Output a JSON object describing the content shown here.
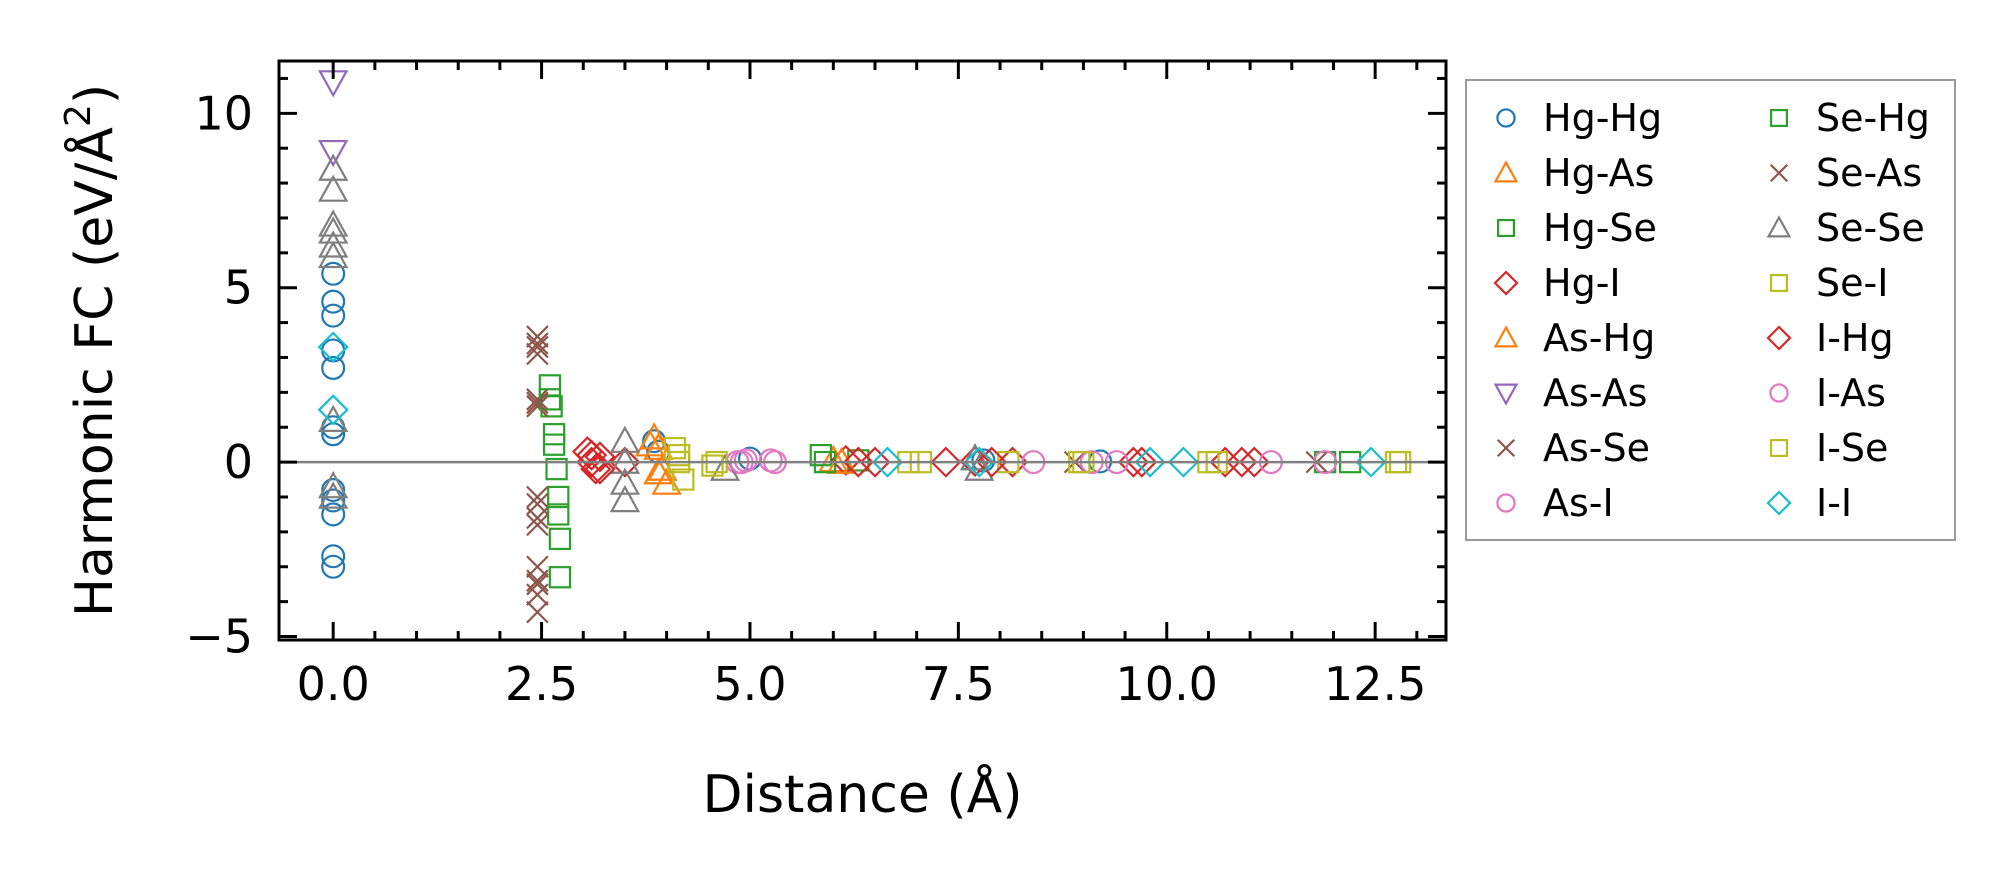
{
  "chart_data": {
    "type": "scatter",
    "xlabel": "Distance (Å)",
    "ylabel": "Harmonic FC (eV/Å²)",
    "ylabel_base": "Harmonic FC (eV/Å",
    "ylabel_sup": "2",
    "ylabel_close": ")",
    "xlim": [
      -0.65,
      13.35
    ],
    "ylim": [
      -5.1,
      11.5
    ],
    "xticks": [
      0.0,
      2.5,
      5.0,
      7.5,
      10.0,
      12.5
    ],
    "xtick_labels": [
      "0.0",
      "2.5",
      "5.0",
      "7.5",
      "10.0",
      "12.5"
    ],
    "yticks": [
      -5,
      0,
      5,
      10
    ],
    "ytick_labels": [
      "−5",
      "0",
      "5",
      "10"
    ],
    "zero_line": true,
    "legend_position": "outside-right",
    "series": [
      {
        "name": "Hg-Hg",
        "marker": "circle",
        "color": "#1f77b4",
        "x": [
          0,
          0,
          0,
          0,
          0,
          0,
          0,
          0,
          0,
          0,
          0,
          0,
          3.85,
          3.9,
          5.0,
          7.8,
          9.2
        ],
        "y": [
          5.4,
          4.6,
          4.2,
          3.2,
          2.7,
          1.0,
          0.8,
          -0.8,
          -1.1,
          -1.5,
          -2.7,
          -3.0,
          0.6,
          0.3,
          0.1,
          0.05,
          0.02
        ]
      },
      {
        "name": "Hg-As",
        "marker": "triangle-up",
        "color": "#ff7f0e",
        "x": [
          3.85,
          3.9,
          3.95,
          4.0,
          6.0
        ],
        "y": [
          0.7,
          0.4,
          -0.2,
          -0.6,
          0.05
        ]
      },
      {
        "name": "Hg-Se",
        "marker": "square",
        "color": "#2ca02c",
        "x": [
          2.6,
          2.62,
          2.65,
          2.68,
          2.7,
          2.72,
          5.85,
          6.3,
          11.9
        ],
        "y": [
          2.2,
          1.6,
          0.8,
          -0.2,
          -1.0,
          -2.2,
          0.2,
          0.05,
          0.0
        ]
      },
      {
        "name": "Hg-I",
        "marker": "diamond",
        "color": "#d62728",
        "x": [
          3.05,
          3.1,
          3.15,
          3.2,
          3.5,
          6.15,
          6.5,
          7.35,
          7.7,
          8.15,
          9.6,
          10.7,
          11.05
        ],
        "y": [
          0.3,
          0.0,
          -0.2,
          0.15,
          0.0,
          0.05,
          0.0,
          0.0,
          0.02,
          0.0,
          0.0,
          0.0,
          0.0
        ]
      },
      {
        "name": "As-Hg",
        "marker": "triangle-up",
        "color": "#ff7f0e",
        "x": [
          3.8,
          3.9,
          6.1
        ],
        "y": [
          0.5,
          -0.3,
          0.0
        ]
      },
      {
        "name": "As-As",
        "marker": "triangle-down",
        "color": "#9467bd",
        "x": [
          0,
          0
        ],
        "y": [
          10.9,
          8.9
        ]
      },
      {
        "name": "As-Se",
        "marker": "x",
        "color": "#8c564b",
        "x": [
          2.45,
          2.45,
          2.45,
          2.45,
          2.45,
          2.45,
          2.45,
          2.45,
          2.45,
          2.45,
          2.45,
          2.45,
          8.9,
          11.8
        ],
        "y": [
          3.6,
          3.4,
          3.1,
          1.8,
          1.6,
          -1.0,
          -1.6,
          -1.8,
          -3.0,
          -3.4,
          -3.8,
          -4.3,
          0.0,
          0.0
        ]
      },
      {
        "name": "As-I",
        "marker": "circle",
        "color": "#e377c2",
        "x": [
          4.85,
          4.95,
          5.3,
          8.4,
          9.4,
          11.25
        ],
        "y": [
          0.0,
          0.05,
          0.0,
          0.0,
          0.0,
          0.0
        ]
      },
      {
        "name": "Se-Hg",
        "marker": "square",
        "color": "#2ca02c",
        "x": [
          2.6,
          2.65,
          2.7,
          2.72,
          5.9,
          12.2
        ],
        "y": [
          1.8,
          0.5,
          -1.5,
          -3.3,
          0.0,
          0.0
        ]
      },
      {
        "name": "Se-As",
        "marker": "x",
        "color": "#8c564b",
        "x": [
          2.45,
          2.45,
          2.45,
          2.45
        ],
        "y": [
          3.3,
          1.7,
          -1.2,
          -3.5
        ]
      },
      {
        "name": "Se-Se",
        "marker": "triangle-up",
        "color": "#7f7f7f",
        "x": [
          0,
          0,
          0,
          0,
          0,
          0,
          0,
          0,
          0,
          3.5,
          3.5,
          3.5,
          3.5,
          4.7,
          7.7,
          7.75
        ],
        "y": [
          8.4,
          7.8,
          6.8,
          6.6,
          6.2,
          5.9,
          1.2,
          -0.7,
          -1.0,
          0.6,
          0.0,
          -0.6,
          -1.1,
          -0.2,
          0.1,
          -0.2
        ]
      },
      {
        "name": "Se-I",
        "marker": "square",
        "color": "#bcbd22",
        "x": [
          4.1,
          4.15,
          4.2,
          4.6,
          6.9,
          8.1,
          9.0,
          10.5,
          12.8
        ],
        "y": [
          0.4,
          0.0,
          -0.5,
          0.0,
          0.0,
          0.0,
          0.0,
          0.0,
          0.0
        ]
      },
      {
        "name": "I-Hg",
        "marker": "diamond",
        "color": "#d62728",
        "x": [
          3.1,
          3.2,
          6.3,
          7.9,
          9.7,
          10.9
        ],
        "y": [
          0.2,
          -0.2,
          0.0,
          0.0,
          0.0,
          0.0
        ]
      },
      {
        "name": "I-As",
        "marker": "circle",
        "color": "#e377c2",
        "x": [
          4.9,
          5.25,
          9.1,
          11.9
        ],
        "y": [
          0.0,
          0.05,
          0.0,
          0.0
        ]
      },
      {
        "name": "I-Se",
        "marker": "square",
        "color": "#bcbd22",
        "x": [
          4.15,
          4.55,
          7.05,
          8.95,
          10.6,
          12.75
        ],
        "y": [
          0.2,
          -0.1,
          0.0,
          0.0,
          0.0,
          0.0
        ]
      },
      {
        "name": "I-I",
        "marker": "diamond",
        "color": "#17becf",
        "x": [
          0,
          0,
          6.65,
          7.75,
          9.8,
          10.2,
          12.45
        ],
        "y": [
          3.3,
          1.5,
          0.0,
          0.0,
          0.0,
          0.0,
          0.0
        ]
      }
    ]
  }
}
